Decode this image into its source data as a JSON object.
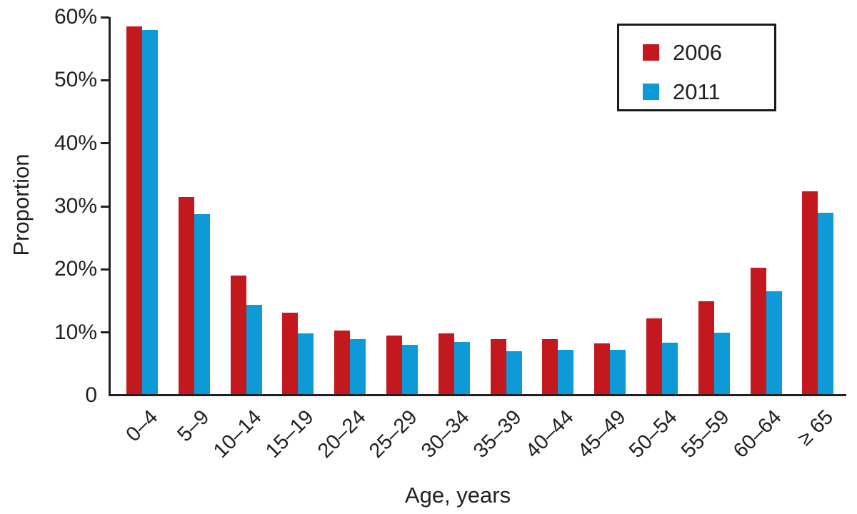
{
  "chart_data": {
    "type": "bar",
    "title": "",
    "xlabel": "Age, years",
    "ylabel": "Proportion",
    "categories": [
      "0–4",
      "5–9",
      "10–14",
      "15–19",
      "20–24",
      "25–29",
      "30–34",
      "35–39",
      "40–44",
      "45–49",
      "50–54",
      "55–59",
      "60–64",
      "≥ 65"
    ],
    "series": [
      {
        "name": "2006",
        "color": "#c2181e",
        "values": [
          58.5,
          31.5,
          19.0,
          13.1,
          10.3,
          9.5,
          9.8,
          8.9,
          8.9,
          8.3,
          12.2,
          15.0,
          20.3,
          32.4
        ]
      },
      {
        "name": "2011",
        "color": "#0e9ad7",
        "values": [
          58.0,
          28.7,
          14.4,
          9.9,
          9.0,
          8.0,
          8.5,
          7.0,
          7.3,
          7.2,
          8.4,
          10.0,
          16.5,
          29.0
        ]
      }
    ],
    "ylim": [
      0,
      60
    ],
    "yticks": [
      {
        "value": 0,
        "label": "0"
      },
      {
        "value": 10,
        "label": "10%"
      },
      {
        "value": 20,
        "label": "20%"
      },
      {
        "value": 30,
        "label": "30%"
      },
      {
        "value": 40,
        "label": "40%"
      },
      {
        "value": 50,
        "label": "50%"
      },
      {
        "value": 60,
        "label": "60%"
      }
    ],
    "legend": {
      "position": "top-right"
    },
    "grid": false,
    "axis_color": "#231f20",
    "text_color": "#231f20"
  }
}
